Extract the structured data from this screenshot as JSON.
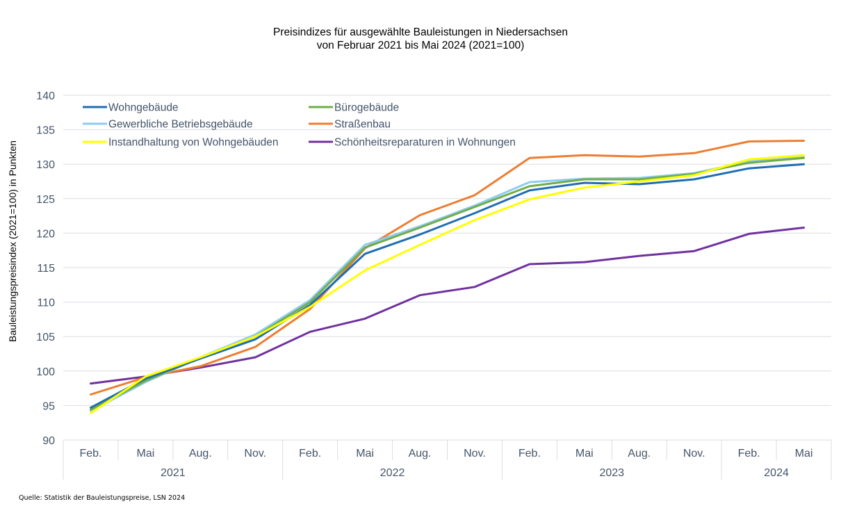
{
  "chart_data": {
    "type": "line",
    "title": "Preisindizes für ausgewählte Bauleistungen in Niedersachsen",
    "subtitle": "von Februar 2021 bis Mai 2024 (2021=100)",
    "xlabel": "",
    "ylabel": "Bauleistungspreisindex (2021=100) in Punkten",
    "ylim": [
      90,
      140
    ],
    "yticks": [
      90,
      95,
      100,
      105,
      110,
      115,
      120,
      125,
      130,
      135,
      140
    ],
    "grid": true,
    "legend_position": "top-left",
    "categories": [
      "Feb.",
      "Mai",
      "Aug.",
      "Nov.",
      "Feb.",
      "Mai",
      "Aug.",
      "Nov.",
      "Feb.",
      "Mai",
      "Aug.",
      "Nov.",
      "Feb.",
      "Mai"
    ],
    "year_groups": [
      {
        "label": "2021",
        "span": 4
      },
      {
        "label": "2022",
        "span": 4
      },
      {
        "label": "2023",
        "span": 4
      },
      {
        "label": "2024",
        "span": 2
      }
    ],
    "series": [
      {
        "name": "Wohngebäude",
        "color": "#1f6db3",
        "values": [
          94.7,
          98.9,
          101.8,
          104.6,
          109.6,
          117.0,
          119.8,
          122.9,
          126.2,
          127.3,
          127.1,
          127.8,
          129.4,
          130.0
        ]
      },
      {
        "name": "Bürogebäude",
        "color": "#70ad47",
        "values": [
          94.4,
          98.6,
          101.9,
          105.0,
          110.0,
          117.9,
          120.8,
          123.8,
          126.8,
          127.8,
          127.8,
          128.6,
          130.2,
          130.9
        ]
      },
      {
        "name": "Gewerbliche Betriebsgebäude",
        "color": "#8ecbf2",
        "values": [
          94.2,
          98.4,
          102.0,
          105.3,
          110.3,
          118.3,
          121.0,
          124.0,
          127.4,
          127.9,
          128.0,
          128.7,
          130.4,
          131.0
        ]
      },
      {
        "name": "Straßenbau",
        "color": "#ed7d31",
        "values": [
          96.6,
          99.1,
          100.7,
          103.5,
          109.0,
          117.8,
          122.6,
          125.5,
          130.9,
          131.3,
          131.1,
          131.6,
          133.3,
          133.4
        ]
      },
      {
        "name": "Instandhaltung von Wohngebäuden",
        "color": "#ffff00",
        "values": [
          93.9,
          99.2,
          102.0,
          105.0,
          109.3,
          114.6,
          118.3,
          121.9,
          124.9,
          126.6,
          127.5,
          128.4,
          130.7,
          131.3
        ]
      },
      {
        "name": "Schönheitsreparaturen in Wohnungen",
        "color": "#7030a0",
        "values": [
          98.2,
          99.2,
          100.5,
          102.0,
          105.7,
          107.6,
          111.0,
          112.2,
          115.5,
          115.8,
          116.7,
          117.4,
          119.9,
          120.8
        ]
      }
    ],
    "draw_order": [
      5,
      3,
      2,
      1,
      0,
      4
    ]
  },
  "source_note": "Quelle: Statistik der Bauleistungspreise, LSN 2024"
}
